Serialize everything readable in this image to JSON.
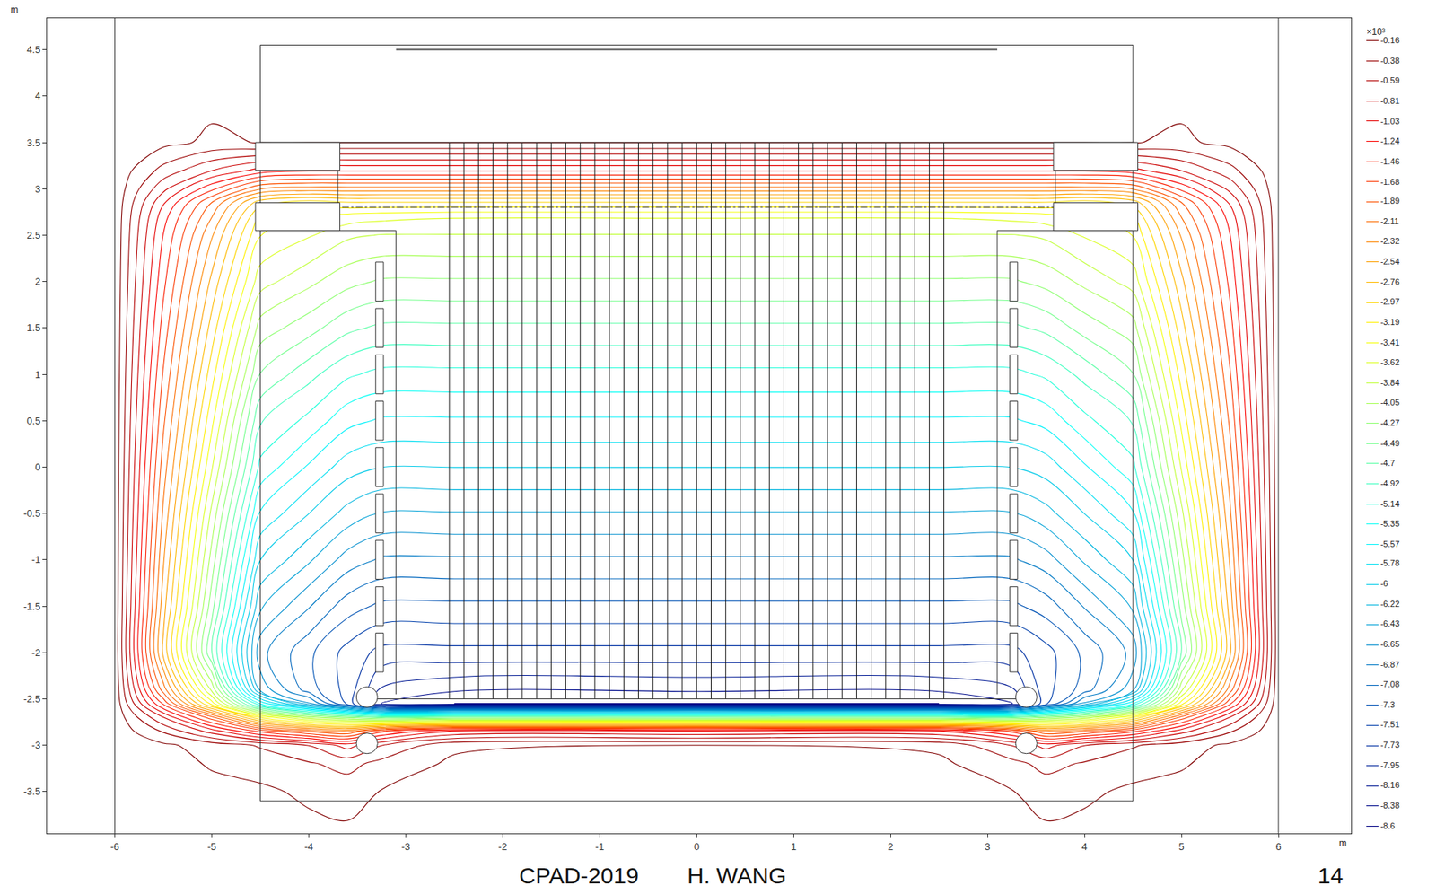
{
  "chart_data": {
    "type": "contour",
    "xlim": [
      -6.7,
      6.75
    ],
    "ylim": [
      -3.95,
      4.84
    ],
    "xticks": [
      -6,
      -5,
      -4,
      -3,
      -2,
      -1,
      0,
      1,
      2,
      3,
      4,
      5,
      6
    ],
    "yticks": [
      -3.5,
      -3,
      -2.5,
      -2,
      -1.5,
      -1,
      -0.5,
      0,
      0.5,
      1,
      1.5,
      2,
      2.5,
      3,
      3.5,
      4,
      4.5
    ],
    "xlabel": "m",
    "ylabel": "m",
    "grid": false,
    "x": [
      -6.7,
      -6,
      -5.5,
      -5,
      -4.5,
      -4,
      -3.6,
      -3.25,
      -2.5,
      0,
      2.5,
      3.25,
      3.6,
      4,
      4.5,
      5,
      5.5,
      6,
      6.75
    ],
    "y": [
      -3.95,
      -3.5,
      -3.2,
      -3.0,
      -2.85,
      -2.7,
      -2.55,
      -2.4,
      -2.0,
      -1.5,
      -1.0,
      -0.5,
      0,
      0.5,
      1.0,
      1.5,
      2.0,
      2.5,
      2.7,
      2.85,
      3.0,
      3.2,
      3.5,
      4.0,
      4.84
    ],
    "z": [
      [
        0,
        0,
        -0.03,
        -0.05,
        -0.08,
        -0.1,
        -0.12,
        -0.1,
        -0.08,
        -0.08,
        -0.08,
        -0.1,
        -0.12,
        -0.1,
        -0.08,
        -0.05,
        -0.03,
        0,
        0
      ],
      [
        0,
        0,
        -0.05,
        -0.1,
        -0.12,
        -0.2,
        -0.25,
        -0.15,
        -0.1,
        -0.1,
        -0.1,
        -0.15,
        -0.25,
        -0.2,
        -0.12,
        -0.1,
        -0.05,
        0,
        0
      ],
      [
        0,
        0,
        -0.08,
        -0.18,
        -0.25,
        -0.35,
        -0.45,
        -0.3,
        -0.12,
        -0.12,
        -0.12,
        -0.3,
        -0.45,
        -0.35,
        -0.25,
        -0.18,
        -0.08,
        0,
        0
      ],
      [
        0,
        0,
        -0.12,
        -0.25,
        -0.4,
        -0.6,
        -0.9,
        -0.6,
        -0.2,
        -0.16,
        -0.2,
        -0.6,
        -0.9,
        -0.6,
        -0.4,
        -0.25,
        -0.12,
        0,
        0
      ],
      [
        0,
        0,
        -0.4,
        -0.9,
        -1.5,
        -1.9,
        -2.1,
        -1.5,
        -1.0,
        -1.0,
        -1.0,
        -1.5,
        -2.1,
        -1.9,
        -1.5,
        -0.9,
        -0.4,
        0,
        0
      ],
      [
        0,
        0,
        -0.8,
        -1.8,
        -3.2,
        -4.0,
        -4.3,
        -4.6,
        -4.5,
        -4.5,
        -4.5,
        -4.6,
        -4.3,
        -4.0,
        -3.2,
        -1.8,
        -0.8,
        0,
        0
      ],
      [
        0,
        0,
        -1.5,
        -3.3,
        -5.4,
        -6.6,
        -7.6,
        -8.4,
        -8.6,
        -8.6,
        -8.6,
        -8.4,
        -7.6,
        -6.6,
        -5.4,
        -3.3,
        -1.5,
        0,
        0
      ],
      [
        0,
        0,
        -2.0,
        -3.9,
        -6.5,
        -7.2,
        -7.6,
        -8.2,
        -8.35,
        -8.35,
        -8.35,
        -8.2,
        -7.6,
        -7.2,
        -6.5,
        -3.9,
        -2.0,
        0,
        0
      ],
      [
        0,
        0,
        -2.6,
        -4.7,
        -6.8,
        -7.25,
        -7.6,
        -7.8,
        -7.8,
        -7.8,
        -7.8,
        -7.8,
        -7.6,
        -7.25,
        -6.8,
        -4.7,
        -2.6,
        0,
        0
      ],
      [
        0,
        0,
        -2.45,
        -4.4,
        -6.4,
        -6.85,
        -7.2,
        -7.35,
        -7.35,
        -7.35,
        -7.35,
        -7.35,
        -7.2,
        -6.85,
        -6.4,
        -4.4,
        -2.45,
        0,
        0
      ],
      [
        0,
        0,
        -2.3,
        -4.15,
        -6.0,
        -6.4,
        -6.75,
        -6.9,
        -6.9,
        -6.9,
        -6.9,
        -6.9,
        -6.75,
        -6.4,
        -6.0,
        -4.15,
        -2.3,
        0,
        0
      ],
      [
        0,
        0,
        -2.15,
        -3.9,
        -5.6,
        -6.0,
        -6.3,
        -6.45,
        -6.45,
        -6.45,
        -6.45,
        -6.45,
        -6.3,
        -6.0,
        -5.6,
        -3.9,
        -2.15,
        0,
        0
      ],
      [
        0,
        0,
        -2.0,
        -3.6,
        -5.2,
        -5.6,
        -5.9,
        -6.0,
        -6.0,
        -6.0,
        -6.0,
        -6.0,
        -5.9,
        -5.6,
        -5.2,
        -3.6,
        -2.0,
        0,
        0
      ],
      [
        0,
        0,
        -1.85,
        -3.35,
        -4.9,
        -5.2,
        -5.5,
        -5.6,
        -5.6,
        -5.6,
        -5.6,
        -5.6,
        -5.5,
        -5.2,
        -4.9,
        -3.35,
        -1.85,
        0,
        0
      ],
      [
        0,
        0,
        -1.7,
        -3.1,
        -4.5,
        -4.85,
        -5.1,
        -5.2,
        -5.2,
        -5.2,
        -5.2,
        -5.2,
        -5.1,
        -4.85,
        -4.5,
        -3.1,
        -1.7,
        0,
        0
      ],
      [
        0,
        0,
        -1.55,
        -2.85,
        -4.15,
        -4.4,
        -4.65,
        -4.75,
        -4.75,
        -4.75,
        -4.75,
        -4.75,
        -4.65,
        -4.4,
        -4.15,
        -2.85,
        -1.55,
        0,
        0
      ],
      [
        0,
        0,
        -1.4,
        -2.6,
        -3.75,
        -4.0,
        -4.2,
        -4.3,
        -4.3,
        -4.3,
        -4.3,
        -4.3,
        -4.2,
        -4.0,
        -3.75,
        -2.6,
        -1.4,
        0,
        0
      ],
      [
        0,
        0,
        -1.25,
        -2.3,
        -3.4,
        -3.6,
        -3.8,
        -3.85,
        -3.85,
        -3.85,
        -3.85,
        -3.85,
        -3.8,
        -3.6,
        -3.4,
        -2.3,
        -1.25,
        0,
        0
      ],
      [
        0,
        0,
        -1.15,
        -2.1,
        -3.2,
        -3.4,
        -3.5,
        -3.55,
        -3.6,
        -3.6,
        -3.6,
        -3.55,
        -3.5,
        -3.4,
        -3.2,
        -2.1,
        -1.15,
        0,
        0
      ],
      [
        0,
        0,
        -1.0,
        -1.9,
        -2.9,
        -3.1,
        -3.0,
        -3.0,
        -3.0,
        -3.0,
        -3.0,
        -3.0,
        -3.0,
        -3.1,
        -2.9,
        -1.9,
        -1.0,
        0,
        0
      ],
      [
        0,
        0,
        -0.75,
        -1.4,
        -2.1,
        -2.2,
        -2.2,
        -2.2,
        -2.2,
        -2.2,
        -2.2,
        -2.2,
        -2.2,
        -2.2,
        -2.1,
        -1.4,
        -0.75,
        0,
        0
      ],
      [
        0,
        0,
        -0.45,
        -0.8,
        -1.1,
        -1.2,
        -1.2,
        -1.2,
        -1.2,
        -1.2,
        -1.2,
        -1.2,
        -1.2,
        -1.2,
        -1.1,
        -0.8,
        -0.45,
        0,
        0
      ],
      [
        0,
        0,
        -0.1,
        -0.2,
        -0.15,
        -0.15,
        -0.15,
        -0.15,
        -0.15,
        -0.15,
        -0.15,
        -0.15,
        -0.15,
        -0.15,
        -0.15,
        -0.2,
        -0.1,
        0,
        0
      ],
      [
        0,
        0,
        -0.05,
        -0.1,
        -0.1,
        -0.1,
        -0.1,
        -0.1,
        -0.1,
        -0.1,
        -0.1,
        -0.1,
        -0.1,
        -0.1,
        -0.1,
        -0.1,
        -0.05,
        0,
        0
      ],
      [
        0,
        0,
        -0.02,
        -0.03,
        -0.03,
        -0.03,
        -0.03,
        -0.03,
        -0.03,
        -0.03,
        -0.03,
        -0.03,
        -0.03,
        -0.03,
        -0.03,
        -0.03,
        -0.02,
        0,
        0
      ]
    ],
    "colorbar": {
      "title": "×10³",
      "range": [
        -8.6,
        -0.16
      ],
      "ticks": [
        -0.16,
        -0.38,
        -0.59,
        -0.81,
        -1.03,
        -1.24,
        -1.46,
        -1.68,
        -1.89,
        -2.11,
        -2.32,
        -2.54,
        -2.76,
        -2.97,
        -3.19,
        -3.41,
        -3.62,
        -3.84,
        -4.05,
        -4.27,
        -4.49,
        -4.7,
        -4.92,
        -5.14,
        -5.35,
        -5.57,
        -5.78,
        -6,
        -6.22,
        -6.43,
        -6.65,
        -6.87,
        -7.08,
        -7.3,
        -7.51,
        -7.73,
        -7.95,
        -8.16,
        -8.38,
        -8.6
      ]
    },
    "field_lines": {
      "x": [
        -2.55,
        -2.4,
        -2.25,
        -2.1,
        -1.95,
        -1.8,
        -1.65,
        -1.5,
        -1.35,
        -1.2,
        -1.05,
        -0.9,
        -0.75,
        -0.6,
        -0.45,
        -0.3,
        -0.15,
        0,
        0.15,
        0.3,
        0.45,
        0.6,
        0.75,
        0.9,
        1.05,
        1.2,
        1.35,
        1.5,
        1.65,
        1.8,
        1.95,
        2.1,
        2.25,
        2.4,
        2.55
      ],
      "y": [
        -2.5,
        3.5
      ]
    },
    "footer": [
      "CPAD-2019",
      "H. WANG"
    ],
    "page": "14"
  }
}
